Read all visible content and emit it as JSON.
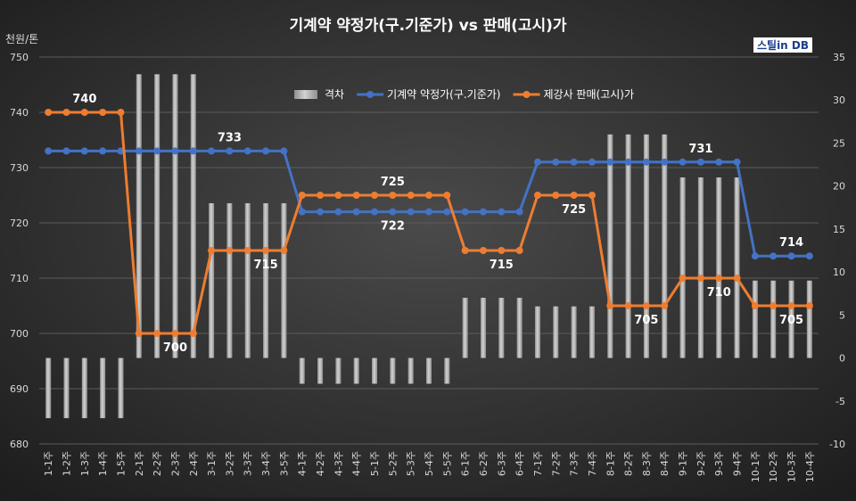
{
  "chart_data": {
    "type": "bar+line",
    "title": "기계약 약정가(구.기준가) vs 판매(고시)가",
    "left_unit": "천원/톤",
    "logo": "스틸in DB",
    "left_axis": {
      "min": 680,
      "max": 750,
      "step": 10
    },
    "right_axis": {
      "min": -10,
      "max": 35,
      "step": 5
    },
    "grid": true,
    "legend_position": "top",
    "categories": [
      "1-1주",
      "1-2주",
      "1-3주",
      "1-4주",
      "1-5주",
      "2-1주",
      "2-2주",
      "2-3주",
      "2-4주",
      "3-1주",
      "3-2주",
      "3-3주",
      "3-4주",
      "3-5주",
      "4-1주",
      "4-2주",
      "4-3주",
      "4-4주",
      "5-1주",
      "5-2주",
      "5-3주",
      "5-4주",
      "5-5주",
      "6-1주",
      "6-2주",
      "6-3주",
      "6-4주",
      "7-1주",
      "7-2주",
      "7-3주",
      "7-4주",
      "8-1주",
      "8-2주",
      "8-3주",
      "8-4주",
      "9-1주",
      "9-2주",
      "9-3주",
      "9-4주",
      "10-1주",
      "10-2주",
      "10-3주",
      "10-4주"
    ],
    "series": [
      {
        "name": "격차",
        "type": "bar",
        "axis": "right",
        "color": "#b3b3b3",
        "values": [
          -7,
          -7,
          -7,
          -7,
          -7,
          33,
          33,
          33,
          33,
          18,
          18,
          18,
          18,
          18,
          -3,
          -3,
          -3,
          -3,
          -3,
          -3,
          -3,
          -3,
          -3,
          7,
          7,
          7,
          7,
          6,
          6,
          6,
          6,
          26,
          26,
          26,
          26,
          21,
          21,
          21,
          21,
          9,
          9,
          9,
          9
        ]
      },
      {
        "name": "기계약 약정가(구.기준가)",
        "type": "line",
        "axis": "left",
        "color": "#4472c4",
        "values": [
          733,
          733,
          733,
          733,
          733,
          733,
          733,
          733,
          733,
          733,
          733,
          733,
          733,
          733,
          722,
          722,
          722,
          722,
          722,
          722,
          722,
          722,
          722,
          722,
          722,
          722,
          722,
          731,
          731,
          731,
          731,
          731,
          731,
          731,
          731,
          731,
          731,
          731,
          731,
          714,
          714,
          714,
          714
        ]
      },
      {
        "name": "제강사 판매(고시)가",
        "type": "line",
        "axis": "left",
        "color": "#ed7d31",
        "values": [
          740,
          740,
          740,
          740,
          740,
          700,
          700,
          700,
          700,
          715,
          715,
          715,
          715,
          715,
          725,
          725,
          725,
          725,
          725,
          725,
          725,
          725,
          725,
          715,
          715,
          715,
          715,
          725,
          725,
          725,
          725,
          705,
          705,
          705,
          705,
          710,
          710,
          710,
          710,
          705,
          705,
          705,
          705
        ]
      }
    ],
    "data_labels": [
      {
        "text": "740",
        "category": 2,
        "series": 2
      },
      {
        "text": "700",
        "category": 7,
        "series": 2
      },
      {
        "text": "733",
        "category": 10,
        "series": 1
      },
      {
        "text": "715",
        "category": 12,
        "series": 2
      },
      {
        "text": "725",
        "category": 19,
        "series": 2
      },
      {
        "text": "722",
        "category": 19,
        "series": 1
      },
      {
        "text": "715",
        "category": 25,
        "series": 2
      },
      {
        "text": "725",
        "category": 29,
        "series": 2
      },
      {
        "text": "705",
        "category": 33,
        "series": 2
      },
      {
        "text": "731",
        "category": 36,
        "series": 1
      },
      {
        "text": "710",
        "category": 37,
        "series": 2
      },
      {
        "text": "714",
        "category": 41,
        "series": 1
      },
      {
        "text": "705",
        "category": 41,
        "series": 2
      }
    ]
  }
}
